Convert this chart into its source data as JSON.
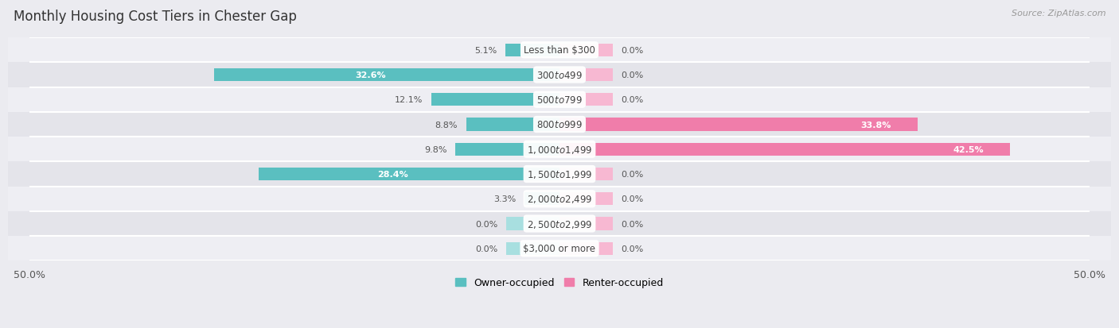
{
  "title": "Monthly Housing Cost Tiers in Chester Gap",
  "source_text": "Source: ZipAtlas.com",
  "categories": [
    "Less than $300",
    "$300 to $499",
    "$500 to $799",
    "$800 to $999",
    "$1,000 to $1,499",
    "$1,500 to $1,999",
    "$2,000 to $2,499",
    "$2,500 to $2,999",
    "$3,000 or more"
  ],
  "owner_values": [
    5.1,
    32.6,
    12.1,
    8.8,
    9.8,
    28.4,
    3.3,
    0.0,
    0.0
  ],
  "renter_values": [
    0.0,
    0.0,
    0.0,
    33.8,
    42.5,
    0.0,
    0.0,
    0.0,
    0.0
  ],
  "owner_color": "#5abfc0",
  "renter_color": "#f07daa",
  "owner_color_light": "#a8dfe0",
  "renter_color_light": "#f7b8d2",
  "row_bg_colors": [
    "#eeeef3",
    "#e4e4ea"
  ],
  "axis_limit": 50.0,
  "bar_height": 0.52,
  "stub_size": 5.0,
  "owner_label": "Owner-occupied",
  "renter_label": "Renter-occupied",
  "title_fontsize": 12,
  "category_fontsize": 8.5,
  "value_fontsize": 8.0,
  "source_fontsize": 8,
  "legend_fontsize": 9,
  "xtick_fontsize": 9
}
